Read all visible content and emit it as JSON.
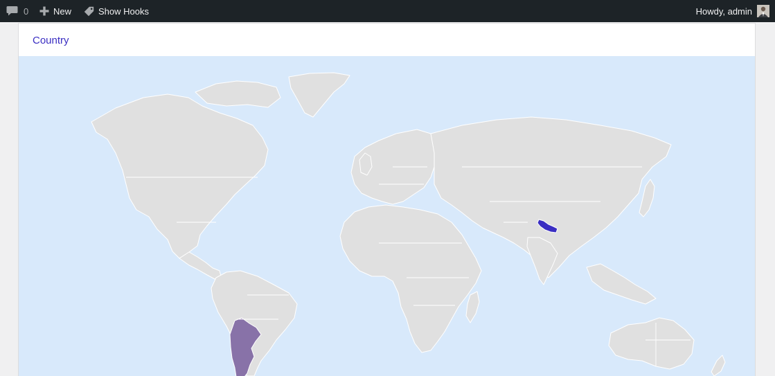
{
  "adminbar": {
    "comments_count": "0",
    "new_label": "New",
    "hooks_label": "Show Hooks",
    "howdy_label": "Howdy, admin",
    "icons": {
      "comments": "speech-bubble-icon",
      "new": "plus-icon",
      "hooks": "tag-icon",
      "avatar": "user-avatar"
    }
  },
  "card": {
    "title": "Country"
  },
  "map": {
    "colors": {
      "ocean": "#d8e9fb",
      "land": "#e0e0e0",
      "border": "#ffffff",
      "highlight_high": "#3a2ec2",
      "highlight_low": "#8872a8"
    },
    "highlighted_regions": [
      {
        "name": "Nepal",
        "color": "#3a2ec2"
      },
      {
        "name": "Argentina",
        "color": "#8872a8"
      }
    ]
  }
}
